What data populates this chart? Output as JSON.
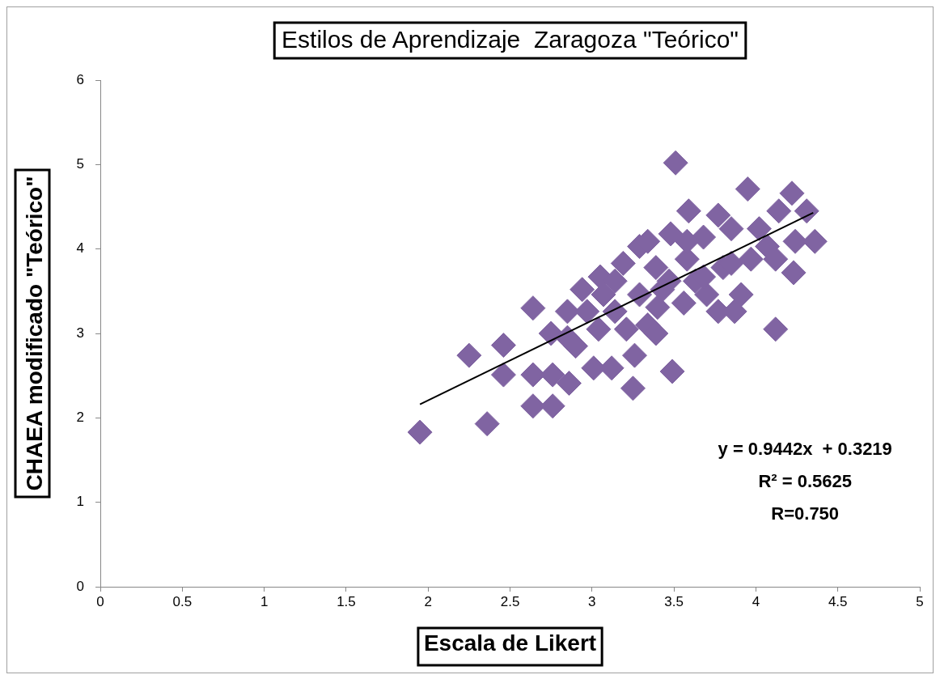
{
  "chart_data": {
    "type": "scatter",
    "title": "Estilos de Aprendizaje  Zaragoza \"Teórico\"",
    "xlabel": "Escala de Likert",
    "ylabel": "CHAEA modificado \"Teórico\"",
    "xlim": [
      0,
      5
    ],
    "xticks": [
      0,
      0.5,
      1,
      1.5,
      2,
      2.5,
      3,
      3.5,
      4,
      4.5,
      5
    ],
    "ylim": [
      0,
      6
    ],
    "yticks": [
      0,
      1,
      2,
      3,
      4,
      5,
      6
    ],
    "grid": false,
    "legend": false,
    "marker": "diamond",
    "series": [
      {
        "color": "#8064a2",
        "x": [
          1.95,
          2.25,
          2.36,
          2.46,
          2.46,
          2.64,
          2.64,
          2.64,
          2.76,
          2.76,
          2.75,
          2.85,
          2.86,
          2.9,
          2.94,
          3.01,
          3.05,
          3.04,
          3.12,
          3.14,
          3.19,
          3.25,
          3.26,
          3.29,
          3.29,
          3.34,
          3.39,
          3.4,
          3.49,
          3.51,
          3.48,
          3.47,
          3.56,
          3.59,
          3.58,
          3.63,
          3.68,
          3.7,
          3.77,
          3.77,
          3.8,
          3.85,
          3.87,
          3.91,
          3.95,
          3.97,
          4.02,
          4.07,
          4.12,
          4.14,
          4.22,
          4.23,
          4.24,
          4.31,
          4.36,
          4.12,
          2.97,
          3.14,
          3.21,
          3.39,
          3.43,
          3.34,
          3.68,
          3.85,
          3.58,
          3.07,
          2.85
        ],
        "values": [
          1.83,
          2.74,
          1.93,
          2.86,
          2.51,
          3.3,
          2.51,
          2.14,
          2.14,
          2.51,
          3.0,
          3.26,
          2.41,
          2.85,
          3.52,
          2.59,
          3.67,
          3.05,
          2.59,
          3.26,
          3.83,
          2.35,
          2.74,
          3.46,
          4.03,
          3.1,
          3.78,
          3.31,
          2.55,
          5.02,
          4.18,
          3.62,
          3.36,
          4.45,
          3.88,
          3.62,
          4.14,
          3.46,
          4.4,
          3.26,
          3.78,
          4.24,
          3.26,
          3.46,
          4.71,
          3.88,
          4.24,
          4.03,
          3.05,
          4.45,
          4.66,
          3.72,
          4.09,
          4.45,
          4.09,
          3.88,
          3.26,
          3.62,
          3.05,
          3.0,
          3.52,
          4.09,
          3.67,
          3.83,
          4.09,
          3.46,
          2.95
        ]
      },
      {
        "type": "line",
        "color": "#000000",
        "marker": "none",
        "line_style": "solid",
        "x": [
          1.95,
          4.35
        ],
        "values": [
          2.16,
          4.43
        ]
      }
    ],
    "annotations": [
      "y = 0.9442x  + 0.3219",
      "R² = 0.5625",
      "R=0.750"
    ]
  }
}
